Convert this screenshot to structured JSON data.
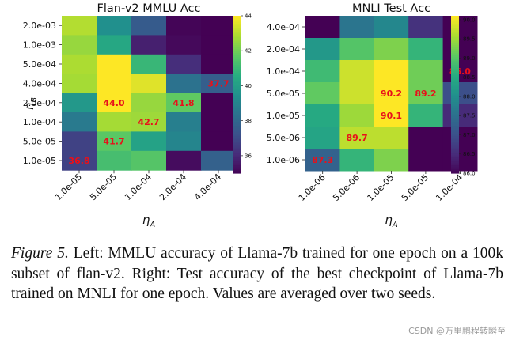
{
  "chart_data": [
    {
      "type": "heatmap",
      "title": "Flan-v2 MMLU Acc",
      "xlabel": "η_A",
      "ylabel": "η_B",
      "x_categories": [
        "1.0e-05",
        "5.0e-05",
        "1.0e-04",
        "2.0e-04",
        "4.0e-04"
      ],
      "y_categories": [
        "2.0e-03",
        "1.0e-03",
        "5.0e-04",
        "4.0e-04",
        "2.0e-04",
        "1.0e-04",
        "5.0e-05",
        "1.0e-05"
      ],
      "values": [
        [
          43.0,
          39.5,
          37.6,
          35.1,
          35.0
        ],
        [
          42.6,
          40.4,
          35.8,
          35.2,
          35.0
        ],
        [
          42.9,
          44.0,
          41.0,
          36.2,
          35.0
        ],
        [
          42.8,
          44.0,
          43.6,
          38.4,
          37.7
        ],
        [
          39.8,
          44.0,
          42.6,
          41.8,
          35.0
        ],
        [
          38.7,
          42.8,
          42.7,
          38.9,
          35.0
        ],
        [
          36.8,
          41.7,
          40.2,
          39.1,
          35.0
        ],
        [
          36.8,
          41.3,
          41.6,
          35.3,
          37.8
        ]
      ],
      "labels": [
        {
          "row": 3,
          "col": 4,
          "text": "37.7"
        },
        {
          "row": 4,
          "col": 1,
          "text": "44.0"
        },
        {
          "row": 4,
          "col": 3,
          "text": "41.8"
        },
        {
          "row": 5,
          "col": 2,
          "text": "42.7"
        },
        {
          "row": 6,
          "col": 1,
          "text": "41.7"
        },
        {
          "row": 7,
          "col": 0,
          "text": "36.8"
        }
      ],
      "colorbar": {
        "range": [
          35,
          44
        ],
        "ticks": [
          "36",
          "38",
          "40",
          "42",
          "44"
        ],
        "tick_values": [
          36,
          38,
          40,
          42,
          44
        ]
      }
    },
    {
      "type": "heatmap",
      "title": "MNLI Test Acc",
      "xlabel": "η_A",
      "ylabel": "",
      "x_categories": [
        "1.0e-06",
        "5.0e-06",
        "1.0e-05",
        "5.0e-05",
        "1.0e-04"
      ],
      "y_categories": [
        "4.0e-04",
        "2.0e-04",
        "1.0e-04",
        "5.0e-05",
        "1.0e-05",
        "5.0e-06",
        "1.0e-06"
      ],
      "values": [
        [
          86.0,
          87.6,
          87.9,
          86.6,
          86.0
        ],
        [
          88.2,
          89.0,
          89.3,
          88.7,
          86.0
        ],
        [
          88.8,
          89.8,
          90.1,
          89.2,
          86.0
        ],
        [
          89.1,
          89.8,
          90.2,
          89.2,
          87.0
        ],
        [
          88.5,
          89.5,
          90.1,
          88.7,
          86.5
        ],
        [
          88.4,
          89.7,
          89.7,
          86.0,
          86.0
        ],
        [
          87.3,
          88.7,
          89.3,
          86.0,
          86.0
        ]
      ],
      "labels": [
        {
          "row": 2,
          "col": 4,
          "text": "86.0"
        },
        {
          "row": 3,
          "col": 2,
          "text": "90.2"
        },
        {
          "row": 3,
          "col": 3,
          "text": "89.2"
        },
        {
          "row": 4,
          "col": 2,
          "text": "90.1"
        },
        {
          "row": 5,
          "col": 1,
          "text": "89.7"
        },
        {
          "row": 6,
          "col": 0,
          "text": "87.3"
        }
      ],
      "colorbar": {
        "range": [
          86.0,
          90.1
        ],
        "ticks": [
          "90.0",
          "89.5",
          "89.0",
          "88.5",
          "88.0",
          "87.5",
          "87.0",
          "86.5",
          "86.0"
        ],
        "tick_values": [
          90.0,
          89.5,
          89.0,
          88.5,
          88.0,
          87.5,
          87.0,
          86.5,
          86.0
        ]
      }
    }
  ],
  "caption": {
    "label": "Figure 5.",
    "text": " Left: MMLU accuracy of Llama-7b trained for one epoch on a 100k subset of flan-v2. Right: Test accuracy of the best checkpoint of Llama-7b trained on MNLI for one epoch. Values are averaged over two seeds."
  },
  "watermark": "CSDN @万里鹏程转瞬至"
}
